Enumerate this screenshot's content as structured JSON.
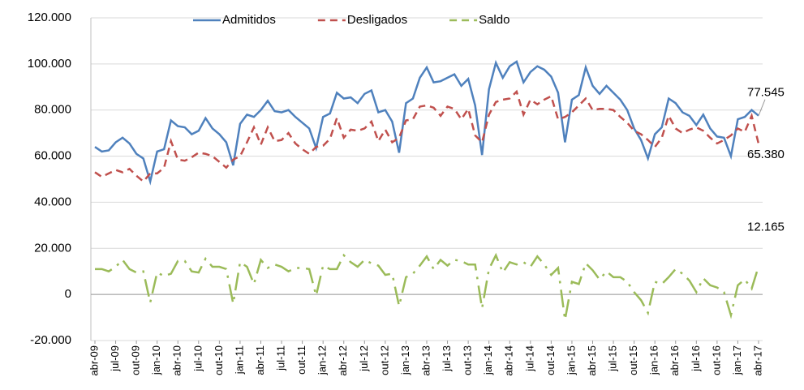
{
  "chart_data": {
    "type": "line",
    "categories": [
      "abr-09",
      null,
      null,
      "jul-09",
      null,
      null,
      "out-09",
      null,
      null,
      "jan-10",
      null,
      null,
      "abr-10",
      null,
      null,
      "jul-10",
      null,
      null,
      "out-10",
      null,
      null,
      "jan-11",
      null,
      null,
      "abr-11",
      null,
      null,
      "jul-11",
      null,
      null,
      "out-11",
      null,
      null,
      "jan-12",
      null,
      null,
      "abr-12",
      null,
      null,
      "jul-12",
      null,
      null,
      "out-12",
      null,
      null,
      "jan-13",
      null,
      null,
      "abr-13",
      null,
      null,
      "jul-13",
      null,
      null,
      "out-13",
      null,
      null,
      "jan-14",
      null,
      null,
      "abr-14",
      null,
      null,
      "jul-14",
      null,
      null,
      "out-14",
      null,
      null,
      "jan-15",
      null,
      null,
      "abr-15",
      null,
      null,
      "jul-15",
      null,
      null,
      "out-15",
      null,
      null,
      "jan-16",
      null,
      null,
      "abr-16",
      null,
      null,
      "jul-16",
      null,
      null,
      "out-16",
      null,
      null,
      "jan-17",
      null,
      null,
      "abr-17"
    ],
    "series": [
      {
        "name": "Admitidos",
        "color": "#4f81bd",
        "dash": "none",
        "values": [
          64000,
          62000,
          62500,
          66000,
          68000,
          65500,
          61000,
          59000,
          49000,
          62000,
          63000,
          75500,
          73000,
          72500,
          69500,
          71000,
          76500,
          72000,
          69500,
          66000,
          56000,
          74000,
          78000,
          77000,
          80000,
          84000,
          79500,
          79000,
          80000,
          77000,
          74500,
          72000,
          63500,
          77000,
          78500,
          87500,
          85000,
          85500,
          83000,
          87000,
          88500,
          79000,
          80000,
          75000,
          61500,
          83000,
          85000,
          94000,
          98500,
          92000,
          92500,
          94000,
          95500,
          90500,
          93500,
          82000,
          60500,
          89000,
          100500,
          94000,
          99000,
          101000,
          92000,
          96500,
          99000,
          97500,
          94500,
          87500,
          66000,
          84500,
          86500,
          98500,
          90500,
          87000,
          90500,
          87500,
          84500,
          80000,
          72000,
          67000,
          59000,
          69500,
          72500,
          85000,
          83000,
          79000,
          77500,
          73500,
          78000,
          72000,
          68500,
          68000,
          60000,
          76000,
          77000,
          80000,
          77545
        ],
        "value_labels": [
          null,
          null,
          null,
          null,
          null,
          null,
          null,
          null,
          null,
          null,
          null,
          null,
          null,
          null,
          null,
          null,
          null,
          null,
          null,
          null,
          null,
          null,
          null,
          null,
          null,
          null,
          null,
          null,
          null,
          null,
          null,
          null,
          null,
          null,
          null,
          null,
          null,
          null,
          null,
          null,
          null,
          null,
          null,
          null,
          null,
          null,
          null,
          null,
          null,
          null,
          null,
          null,
          null,
          null,
          null,
          null,
          null,
          null,
          null,
          null,
          null,
          null,
          null,
          null,
          null,
          null,
          null,
          null,
          null,
          null,
          null,
          null,
          null,
          null,
          null,
          null,
          null,
          null,
          null,
          null,
          null,
          null,
          null,
          null,
          null,
          null,
          null,
          null,
          null,
          null,
          null,
          null,
          null,
          null,
          null,
          null,
          "77.545"
        ]
      },
      {
        "name": "Desligados",
        "color": "#c0504d",
        "dash": "9 6",
        "values": [
          53000,
          51000,
          52500,
          54000,
          53000,
          54500,
          51500,
          49000,
          52500,
          52500,
          55000,
          66500,
          58500,
          58000,
          59500,
          61500,
          61000,
          60000,
          57500,
          55000,
          58500,
          60000,
          66000,
          72500,
          65000,
          72500,
          66500,
          67000,
          70000,
          65500,
          63000,
          61000,
          64000,
          64500,
          67500,
          76500,
          68000,
          71500,
          71000,
          72000,
          75000,
          66500,
          71500,
          66000,
          68000,
          75500,
          76000,
          81500,
          82000,
          81000,
          77500,
          81500,
          80500,
          76000,
          80500,
          69000,
          66000,
          78000,
          83500,
          84500,
          85000,
          88000,
          78000,
          84500,
          82500,
          84500,
          86000,
          76000,
          77000,
          79000,
          82000,
          85000,
          80000,
          80500,
          80500,
          80000,
          77000,
          74500,
          71000,
          69500,
          67000,
          64000,
          68000,
          77500,
          72000,
          70000,
          71500,
          72500,
          71000,
          68000,
          65500,
          67000,
          69000,
          72000,
          70500,
          77500,
          65380
        ],
        "value_labels": [
          null,
          null,
          null,
          null,
          null,
          null,
          null,
          null,
          null,
          null,
          null,
          null,
          null,
          null,
          null,
          null,
          null,
          null,
          null,
          null,
          null,
          null,
          null,
          null,
          null,
          null,
          null,
          null,
          null,
          null,
          null,
          null,
          null,
          null,
          null,
          null,
          null,
          null,
          null,
          null,
          null,
          null,
          null,
          null,
          null,
          null,
          null,
          null,
          null,
          null,
          null,
          null,
          null,
          null,
          null,
          null,
          null,
          null,
          null,
          null,
          null,
          null,
          null,
          null,
          null,
          null,
          null,
          null,
          null,
          null,
          null,
          null,
          null,
          null,
          null,
          null,
          null,
          null,
          null,
          null,
          null,
          null,
          null,
          null,
          null,
          null,
          null,
          null,
          null,
          null,
          null,
          null,
          null,
          null,
          null,
          null,
          "65.380"
        ]
      },
      {
        "name": "Saldo",
        "color": "#9bbb59",
        "dash": "22 8 3 8",
        "values": [
          11000,
          11000,
          10000,
          12000,
          15000,
          11000,
          9500,
          10000,
          -3500,
          9500,
          8000,
          9000,
          14500,
          14500,
          10000,
          9500,
          15500,
          12000,
          12000,
          11000,
          -4000,
          14000,
          12000,
          4500,
          15000,
          11500,
          13000,
          12000,
          10000,
          11500,
          11500,
          11000,
          -500,
          12500,
          11000,
          11000,
          17000,
          14000,
          12000,
          15000,
          13500,
          12500,
          8500,
          9000,
          -5000,
          7500,
          9000,
          12500,
          16500,
          11000,
          15000,
          12500,
          15000,
          14500,
          13000,
          13000,
          -6000,
          11000,
          17000,
          9500,
          14000,
          13000,
          14000,
          12000,
          16500,
          13000,
          8500,
          11500,
          -11000,
          5500,
          4500,
          13500,
          10500,
          6500,
          10000,
          7500,
          7500,
          5500,
          1000,
          -2500,
          -8000,
          5500,
          4500,
          7500,
          11000,
          9000,
          6000,
          1000,
          7000,
          4000,
          3000,
          1000,
          -9000,
          4000,
          6500,
          2500,
          12165
        ],
        "value_labels": [
          null,
          null,
          null,
          null,
          null,
          null,
          null,
          null,
          null,
          null,
          null,
          null,
          null,
          null,
          null,
          null,
          null,
          null,
          null,
          null,
          null,
          null,
          null,
          null,
          null,
          null,
          null,
          null,
          null,
          null,
          null,
          null,
          null,
          null,
          null,
          null,
          null,
          null,
          null,
          null,
          null,
          null,
          null,
          null,
          null,
          null,
          null,
          null,
          null,
          null,
          null,
          null,
          null,
          null,
          null,
          null,
          null,
          null,
          null,
          null,
          null,
          null,
          null,
          null,
          null,
          null,
          null,
          null,
          null,
          null,
          null,
          null,
          null,
          null,
          null,
          null,
          null,
          null,
          null,
          null,
          null,
          null,
          null,
          null,
          null,
          null,
          null,
          null,
          null,
          null,
          null,
          null,
          null,
          null,
          null,
          null,
          "12.165"
        ]
      }
    ],
    "ylim": [
      -20000,
      120000
    ],
    "yticks": [
      {
        "value": -20000,
        "label": "-20.000"
      },
      0,
      {
        "value": 20000,
        "label": "20.000"
      },
      {
        "value": 40000,
        "label": "40.000"
      },
      {
        "value": 60000,
        "label": "60.000"
      },
      {
        "value": 80000,
        "label": "80.000"
      },
      {
        "value": 100000,
        "label": "100.000"
      },
      {
        "value": 120000,
        "label": "120.000"
      }
    ],
    "grid": true,
    "legend": "top"
  }
}
